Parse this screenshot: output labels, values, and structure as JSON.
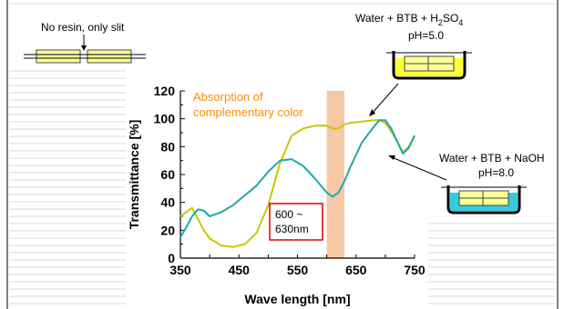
{
  "sample_label": "No resin, only slit",
  "annotations": {
    "acid_label": "Water + BTB + H",
    "acid_sub": "2",
    "acid_tail": "SO",
    "acid_sub2": "4",
    "acid_ph": "pH=5.0",
    "base_label": "Water + BTB + NaOH",
    "base_ph": "pH=8.0",
    "band_line1": "Absorption of",
    "band_line2": "complementary color",
    "range_line1": "600 ~",
    "range_line2": "630nm"
  },
  "colors": {
    "acid_series": "#c8c800",
    "base_series": "#20a8a8",
    "band": "#f7c8a4",
    "band_text": "#ff8c00",
    "acid_liquid": "#ffff33",
    "base_liquid": "#33ccdd",
    "range_box": "#e00000"
  },
  "chart_data": {
    "type": "line",
    "xlabel": "Wave length [nm]",
    "ylabel": "Transmittance [%]",
    "xlim": [
      350,
      750
    ],
    "ylim": [
      0,
      120
    ],
    "xticks": [
      350,
      450,
      550,
      650,
      750
    ],
    "xtick_labels": [
      "350",
      "450",
      "550",
      "650",
      "750"
    ],
    "xticks_all": [
      350,
      400,
      450,
      500,
      550,
      600,
      650,
      700,
      750
    ],
    "yticks": [
      0,
      20,
      40,
      60,
      80,
      100,
      120
    ],
    "ytick_labels": [
      "0",
      "20",
      "40",
      "60",
      "80",
      "100",
      "120"
    ],
    "highlight_band": [
      600,
      630
    ],
    "series": [
      {
        "key": "acid",
        "x": [
          350,
          360,
          370,
          380,
          390,
          400,
          420,
          440,
          460,
          480,
          500,
          520,
          540,
          560,
          580,
          600,
          610,
          620,
          630,
          640,
          660,
          680,
          690,
          700,
          710,
          720,
          730,
          740,
          750
        ],
        "y": [
          30,
          33,
          36,
          28,
          20,
          14,
          9,
          8,
          10,
          18,
          38,
          68,
          88,
          93,
          95,
          95,
          93,
          93,
          96,
          97,
          98,
          99,
          99,
          97,
          91,
          84,
          76,
          80,
          88
        ]
      },
      {
        "key": "base",
        "x": [
          350,
          360,
          370,
          380,
          390,
          400,
          420,
          440,
          460,
          480,
          500,
          520,
          540,
          560,
          580,
          600,
          610,
          620,
          630,
          640,
          660,
          680,
          690,
          700,
          710,
          720,
          730,
          740,
          750
        ],
        "y": [
          15,
          22,
          30,
          35,
          34,
          30,
          33,
          38,
          45,
          52,
          62,
          70,
          71,
          66,
          57,
          47,
          44,
          47,
          55,
          65,
          83,
          94,
          99,
          99,
          93,
          84,
          75,
          79,
          88
        ]
      }
    ]
  }
}
